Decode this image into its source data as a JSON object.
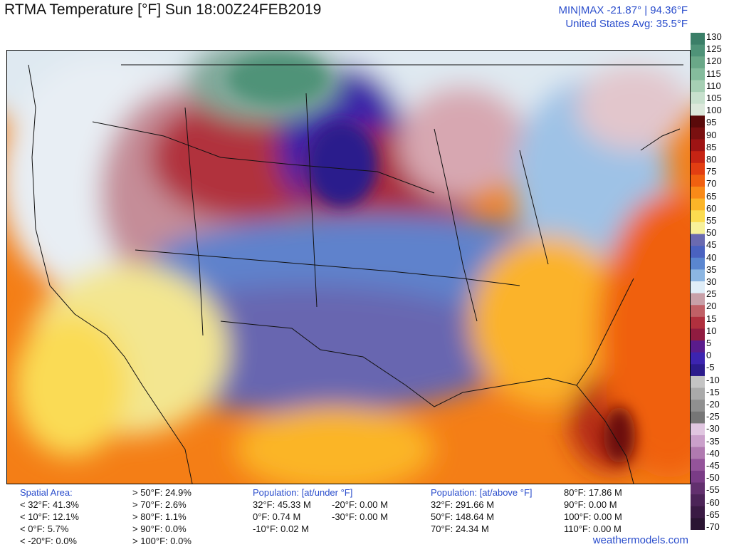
{
  "title": "RTMA Temperature [°F]  Sun 18:00Z24FEB2019",
  "minmax": "MIN|MAX -21.87°  |  94.36°F",
  "avg": "United States Avg: 35.5°F",
  "footer": "weathermodels.com",
  "colorbar": {
    "ticks": [
      "130",
      "125",
      "120",
      "115",
      "110",
      "105",
      "100",
      "95",
      "90",
      "85",
      "80",
      "75",
      "70",
      "65",
      "60",
      "55",
      "50",
      "45",
      "40",
      "35",
      "30",
      "25",
      "20",
      "15",
      "10",
      "5",
      "0",
      "-5",
      "-10",
      "-15",
      "-20",
      "-25",
      "-30",
      "-35",
      "-40",
      "-45",
      "-50",
      "-55",
      "-60",
      "-65",
      "-70"
    ],
    "colors": [
      "#3b7f68",
      "#4f9378",
      "#6aa888",
      "#85bc9d",
      "#a6cfb4",
      "#c7e0cd",
      "#dce8db",
      "#5a0a0a",
      "#7a1010",
      "#9e1414",
      "#c62414",
      "#e23e12",
      "#f06010",
      "#f98a18",
      "#fbb528",
      "#fbdc50",
      "#f7f19a",
      "#6a6ab0",
      "#4a62c0",
      "#5a86d0",
      "#8cb6e2",
      "#e0eef8",
      "#c8a0a8",
      "#c06066",
      "#b0303e",
      "#901c40",
      "#5a1c8c",
      "#3c24b0",
      "#2c1c8c",
      "#c4c4c4",
      "#aaaaaa",
      "#909090",
      "#767676",
      "#e0c6e0",
      "#caa0ca",
      "#b07ab0",
      "#94549a",
      "#7a3c86",
      "#62306e",
      "#4c2458",
      "#3a1a44",
      "#2a1432"
    ]
  },
  "stats": {
    "spatial_header": "Spatial Area:",
    "spatial_left": [
      "< 32°F: 41.3%",
      "< 10°F: 12.1%",
      "< 0°F: 5.7%",
      "< -20°F: 0.0%"
    ],
    "spatial_right": [
      "> 50°F: 24.9%",
      "> 70°F: 2.6%",
      "> 80°F: 1.1%",
      "> 90°F: 0.0%",
      "> 100°F: 0.0%"
    ],
    "pop_under_header": "Population: [at/under °F]",
    "pop_under_left": [
      "32°F: 45.33 M",
      "0°F: 0.74 M",
      "-10°F: 0.02 M"
    ],
    "pop_under_right": [
      "-20°F: 0.00 M",
      "-30°F: 0.00 M"
    ],
    "pop_above_header": "Population: [at/above °F]",
    "pop_above_left": [
      "32°F: 291.66 M",
      "50°F: 148.64 M",
      "70°F: 24.34 M"
    ],
    "pop_above_right": [
      "80°F: 17.86 M",
      "90°F: 0.00 M",
      "100°F: 0.00 M",
      "110°F: 0.00 M"
    ]
  }
}
